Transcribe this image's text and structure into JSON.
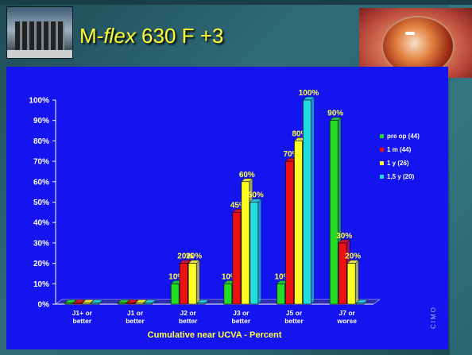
{
  "slide": {
    "title_prefix": "M-",
    "title_italic": "flex",
    "title_suffix": " 630 F +3",
    "watermark": "CIMO"
  },
  "chart_data": {
    "type": "bar",
    "title": "",
    "xlabel": "Cumulative near UCVA - Percent",
    "ylabel": "",
    "ylim": [
      0,
      100
    ],
    "y_ticks": [
      "0%",
      "10%",
      "20%",
      "30%",
      "40%",
      "50%",
      "60%",
      "70%",
      "80%",
      "90%",
      "100%"
    ],
    "categories": [
      "J1+ or better",
      "J1 or better",
      "J2 or better",
      "J3 or better",
      "J5 or better",
      "J7 or worse"
    ],
    "series": [
      {
        "name": "pre op (44)",
        "color": "#22dd22",
        "values": [
          0,
          0,
          10,
          10,
          10,
          90
        ],
        "labels": [
          "",
          "",
          "10%",
          "10%",
          "10%",
          "90%"
        ]
      },
      {
        "name": "1 m (44)",
        "color": "#ee1111",
        "values": [
          0,
          0,
          20,
          45,
          70,
          30
        ],
        "labels": [
          "",
          "",
          "20%",
          "45%",
          "70%",
          "30%"
        ]
      },
      {
        "name": "1 y (26)",
        "color": "#ffff22",
        "values": [
          0,
          0,
          20,
          60,
          80,
          20
        ],
        "labels": [
          "",
          "",
          "20%",
          "60%",
          "80%",
          "20%"
        ]
      },
      {
        "name": "1,5 y (20)",
        "color": "#22dddd",
        "values": [
          0,
          0,
          0,
          50,
          100,
          0
        ],
        "labels": [
          "",
          "",
          "",
          "50%",
          "100%",
          ""
        ]
      }
    ],
    "grid": false,
    "legend_position": "right",
    "label_color": "#ffff44",
    "axis_text_color": "#ffffff",
    "background": "#1414ee"
  }
}
